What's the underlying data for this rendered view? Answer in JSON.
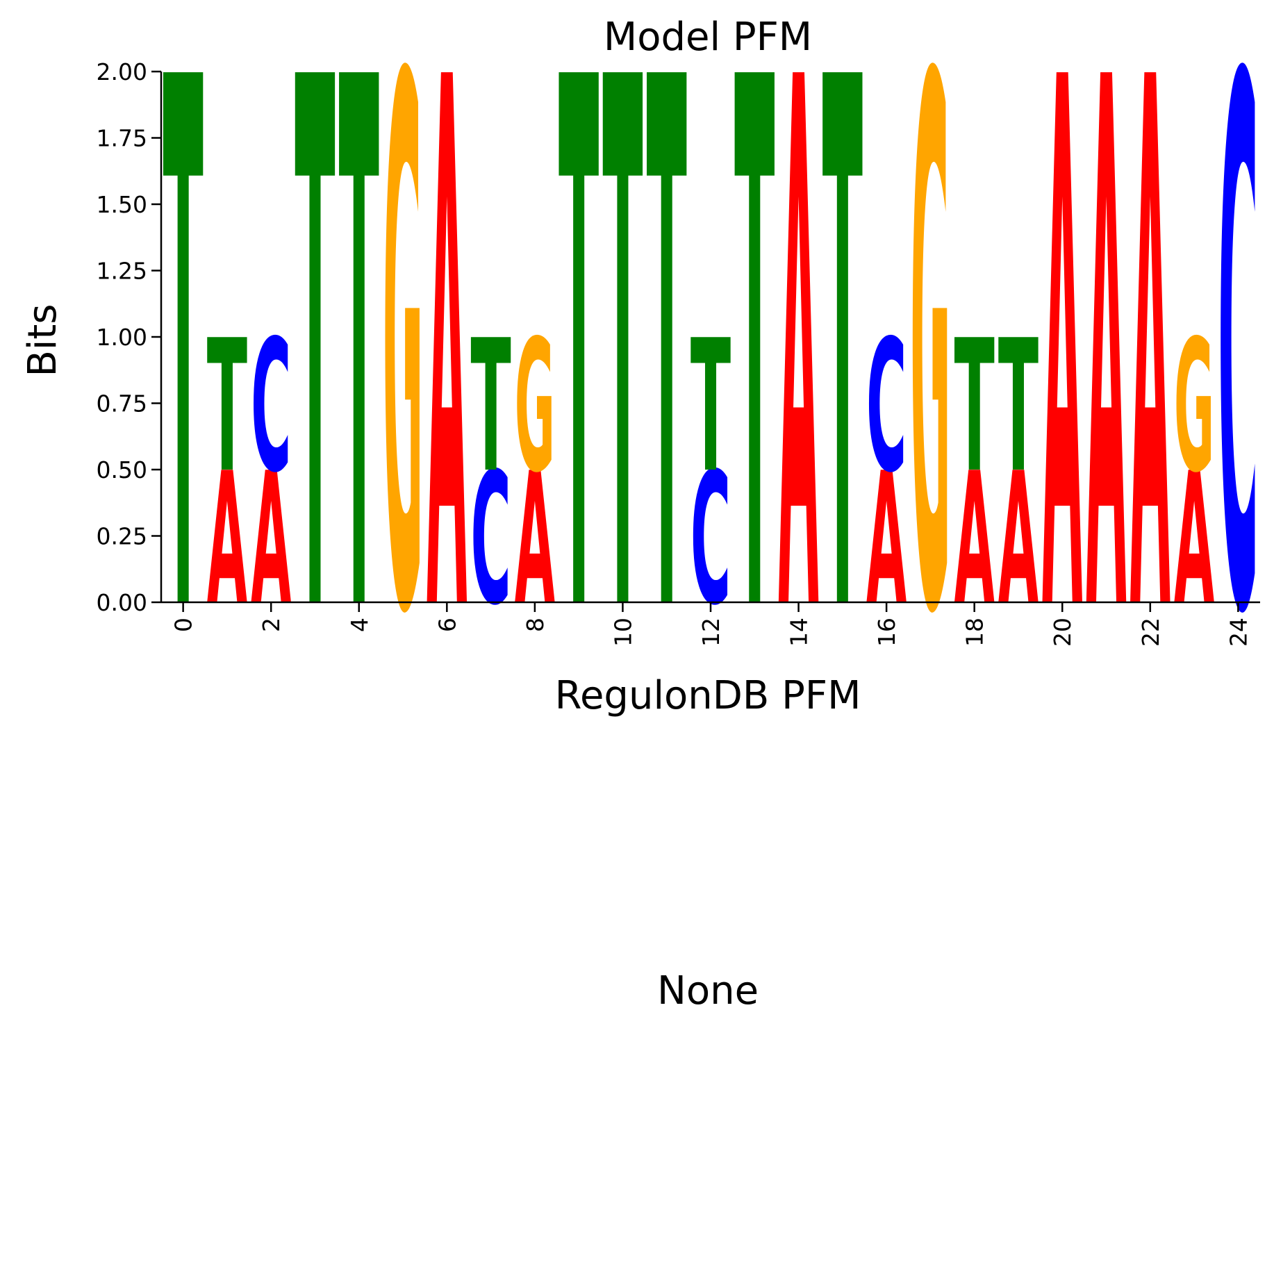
{
  "chart_data": {
    "type": "sequence-logo",
    "title": "Model PFM",
    "xlabel": "RegulonDB PFM",
    "ylabel": "Bits",
    "ylim": [
      0,
      2
    ],
    "xlim": [
      -0.5,
      24.5
    ],
    "y_ticks": [
      "0.00",
      "0.25",
      "0.50",
      "0.75",
      "1.00",
      "1.25",
      "1.50",
      "1.75",
      "2.00"
    ],
    "x_ticks": [
      "0",
      "2",
      "4",
      "6",
      "8",
      "10",
      "12",
      "14",
      "16",
      "18",
      "20",
      "22",
      "24"
    ],
    "grid": false,
    "base_colors": {
      "A": "#ff0000",
      "C": "#0000ff",
      "G": "#ffa500",
      "T": "#008000"
    },
    "positions": [
      [
        {
          "base": "T",
          "bits": 2.0
        }
      ],
      [
        {
          "base": "A",
          "bits": 0.5
        },
        {
          "base": "T",
          "bits": 0.5
        }
      ],
      [
        {
          "base": "A",
          "bits": 0.5
        },
        {
          "base": "C",
          "bits": 0.5
        }
      ],
      [
        {
          "base": "T",
          "bits": 2.0
        }
      ],
      [
        {
          "base": "T",
          "bits": 2.0
        }
      ],
      [
        {
          "base": "G",
          "bits": 2.0
        }
      ],
      [
        {
          "base": "A",
          "bits": 2.0
        }
      ],
      [
        {
          "base": "C",
          "bits": 0.5
        },
        {
          "base": "T",
          "bits": 0.5
        }
      ],
      [
        {
          "base": "A",
          "bits": 0.5
        },
        {
          "base": "G",
          "bits": 0.5
        }
      ],
      [
        {
          "base": "T",
          "bits": 2.0
        }
      ],
      [
        {
          "base": "T",
          "bits": 2.0
        }
      ],
      [
        {
          "base": "T",
          "bits": 2.0
        }
      ],
      [
        {
          "base": "C",
          "bits": 0.5
        },
        {
          "base": "T",
          "bits": 0.5
        }
      ],
      [
        {
          "base": "T",
          "bits": 2.0
        }
      ],
      [
        {
          "base": "A",
          "bits": 2.0
        }
      ],
      [
        {
          "base": "T",
          "bits": 2.0
        }
      ],
      [
        {
          "base": "A",
          "bits": 0.5
        },
        {
          "base": "C",
          "bits": 0.5
        }
      ],
      [
        {
          "base": "G",
          "bits": 2.0
        }
      ],
      [
        {
          "base": "A",
          "bits": 0.5
        },
        {
          "base": "T",
          "bits": 0.5
        }
      ],
      [
        {
          "base": "A",
          "bits": 0.5
        },
        {
          "base": "T",
          "bits": 0.5
        }
      ],
      [
        {
          "base": "A",
          "bits": 2.0
        }
      ],
      [
        {
          "base": "A",
          "bits": 2.0
        }
      ],
      [
        {
          "base": "A",
          "bits": 2.0
        }
      ],
      [
        {
          "base": "A",
          "bits": 0.5
        },
        {
          "base": "G",
          "bits": 0.5
        }
      ],
      [
        {
          "base": "C",
          "bits": 2.0
        }
      ]
    ]
  },
  "lower_panel": {
    "text": "None"
  }
}
